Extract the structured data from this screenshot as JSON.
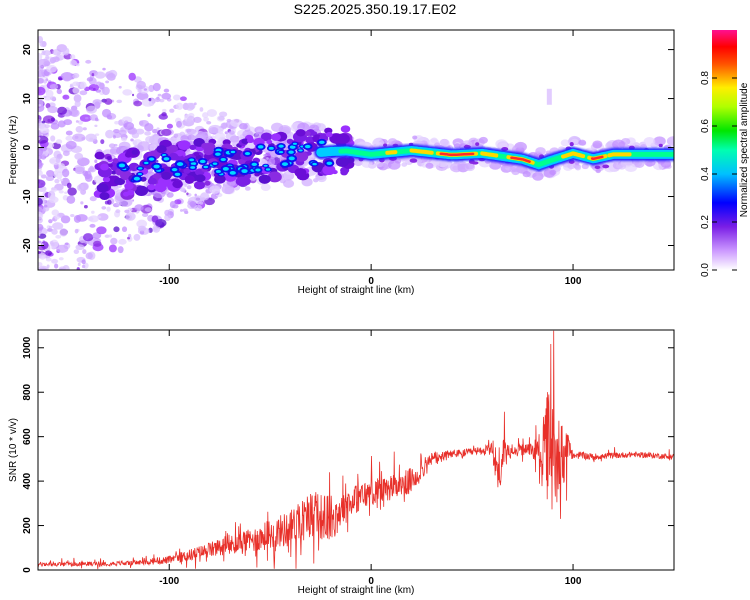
{
  "title": "S225.2025.350.19.17.E02",
  "chart_data": [
    {
      "type": "heatmap",
      "name": "spectrogram",
      "xlabel": "Height of straight line (km)",
      "ylabel": "Frequency (Hz)",
      "xlim": [
        -165,
        150
      ],
      "ylim": [
        -25,
        24
      ],
      "xticks": [
        -100,
        0,
        100
      ],
      "yticks": [
        -20,
        -10,
        0,
        10,
        20
      ],
      "colorbar": {
        "label": "Normalized spectral amplitude",
        "range": [
          0,
          1
        ],
        "ticks": [
          "0.0",
          "0.2",
          "0.4",
          "0.6",
          "0.8"
        ],
        "tick_values": [
          0,
          0.2,
          0.4,
          0.6,
          0.8
        ]
      },
      "ridge": {
        "description": "frequency ridge vs height",
        "x": [
          -128,
          -110,
          -90,
          -75,
          -60,
          -45,
          -30,
          -20,
          -12,
          0,
          20,
          40,
          55,
          65,
          75,
          83,
          90,
          100,
          110,
          120,
          150
        ],
        "freq": [
          -6,
          -4,
          -3.5,
          -3,
          -2.5,
          -1.8,
          -1.2,
          -0.8,
          -0.7,
          -1.4,
          -0.6,
          -1.5,
          -1.2,
          -1.8,
          -2.4,
          -3.5,
          -2.5,
          -1.2,
          -2.3,
          -1.4,
          -1.4
        ]
      }
    },
    {
      "type": "line",
      "name": "snr",
      "xlabel": "Height of straight line (km)",
      "ylabel": "SNR (10 * v/v)",
      "xlim": [
        -165,
        150
      ],
      "ylim": [
        0,
        1080
      ],
      "xticks": [
        -100,
        0,
        100
      ],
      "yticks": [
        0,
        200,
        400,
        600,
        800,
        1000
      ],
      "color": "#e8302a",
      "envelope": {
        "x": [
          -165,
          -120,
          -100,
          -80,
          -60,
          -40,
          -30,
          -20,
          -10,
          0,
          10,
          20,
          30,
          40,
          50,
          55,
          60,
          63,
          66,
          70,
          80,
          85,
          88,
          90,
          92,
          95,
          98,
          100,
          110,
          130,
          150
        ],
        "mean": [
          25,
          30,
          45,
          90,
          130,
          190,
          250,
          230,
          310,
          350,
          370,
          400,
          500,
          520,
          530,
          540,
          540,
          440,
          520,
          540,
          540,
          540,
          560,
          500,
          540,
          520,
          540,
          520,
          510,
          520,
          510
        ],
        "spread": [
          20,
          20,
          35,
          70,
          110,
          160,
          220,
          210,
          140,
          120,
          120,
          120,
          60,
          40,
          35,
          35,
          60,
          250,
          150,
          40,
          60,
          250,
          600,
          480,
          380,
          300,
          90,
          40,
          30,
          25,
          25
        ]
      }
    }
  ]
}
